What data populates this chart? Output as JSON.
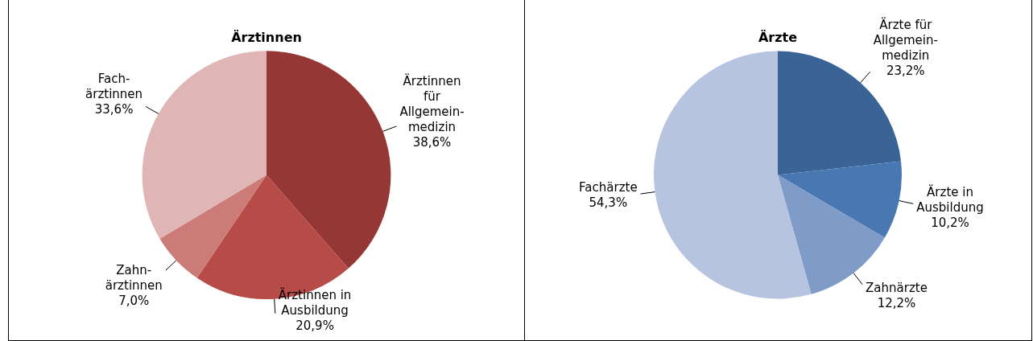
{
  "chart_data": [
    {
      "type": "pie",
      "title": "Ärztinnen",
      "categories": [
        "Ärztinnen\nfür\nAllgemein-\nmedizin",
        "Ärztinnen in\nAusbildung",
        "Zahn-\närztinnen",
        "Fach-\närztinnen"
      ],
      "values": [
        38.6,
        20.9,
        7.0,
        33.6
      ],
      "colors": [
        "#953735",
        "#b64b47",
        "#cd7b79",
        "#dfb6b5"
      ],
      "value_labels": [
        "38,6%",
        "20,9%",
        "7,0%",
        "33,6%"
      ]
    },
    {
      "type": "pie",
      "title": "Ärzte",
      "categories": [
        "Ärzte für\nAllgemein-\nmedizin",
        "Ärzte in\nAusbildung",
        "Zahnärzte",
        "Fachärzte"
      ],
      "values": [
        23.2,
        10.2,
        12.2,
        54.3
      ],
      "colors": [
        "#3a6496",
        "#4877b1",
        "#7f9cc9",
        "#b7c4df"
      ],
      "value_labels": [
        "23,2%",
        "10,2%",
        "12,2%",
        "54,3%"
      ]
    }
  ]
}
